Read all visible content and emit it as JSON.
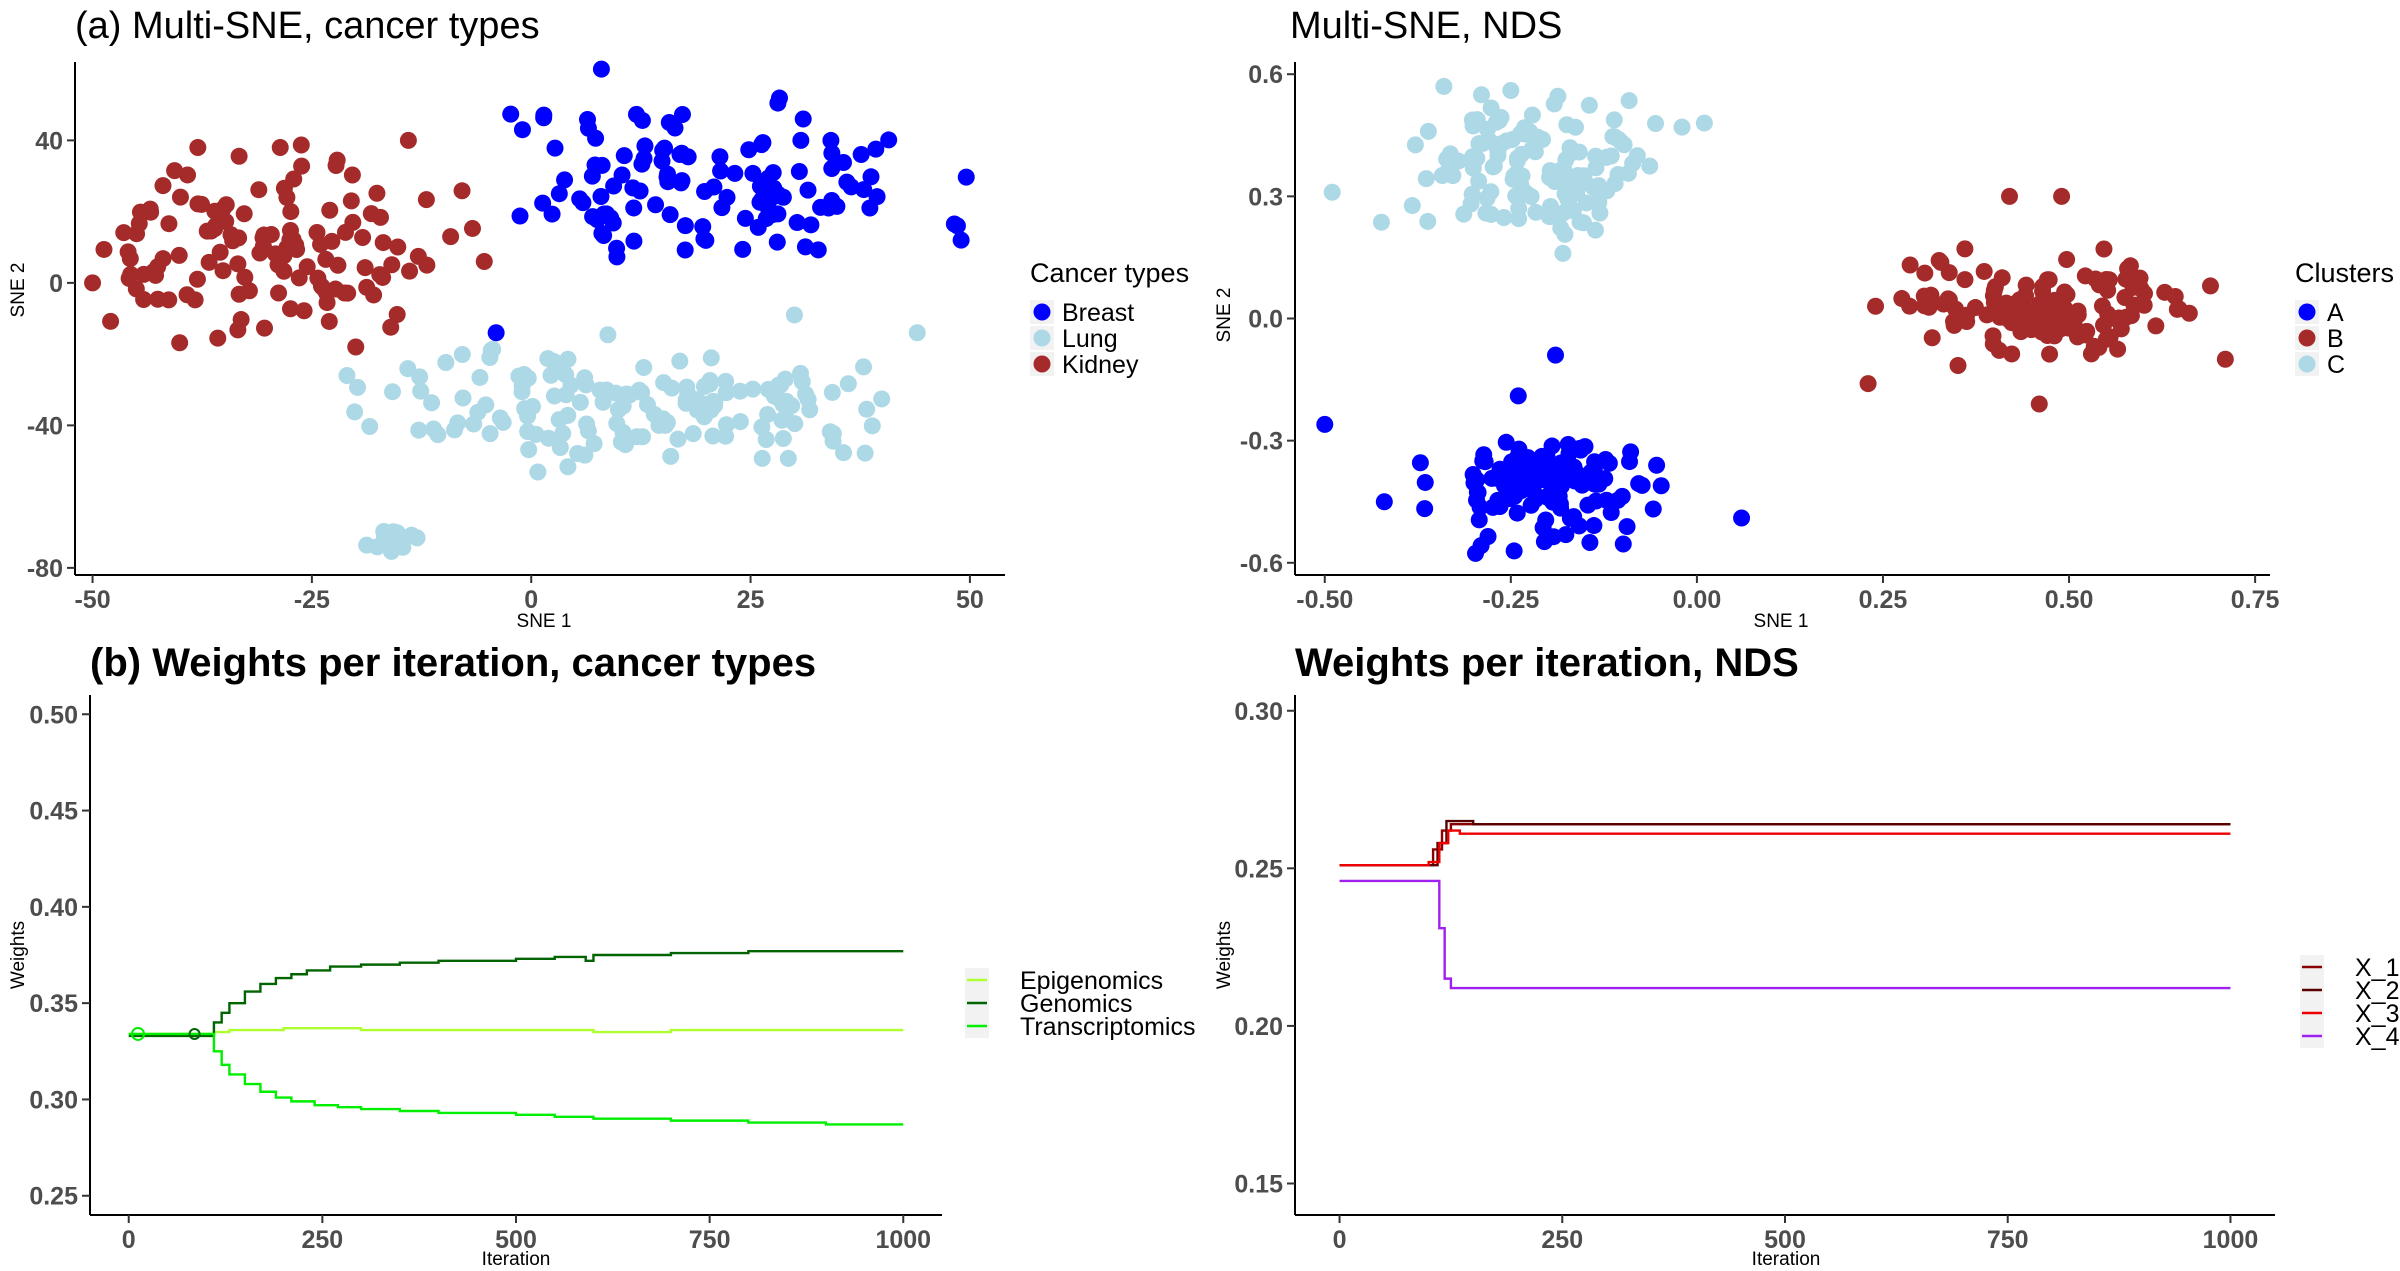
{
  "chart_data": [
    {
      "id": "a",
      "type": "scatter",
      "title": "(a) Multi-SNE, cancer types",
      "xlabel": "SNE 1",
      "ylabel": "SNE 2",
      "xlim": [
        -52,
        54
      ],
      "ylim": [
        -82,
        62
      ],
      "xticks": [
        -50,
        -25,
        0,
        25,
        50
      ],
      "yticks": [
        -80,
        -40,
        0,
        40
      ],
      "xtick_labels": [
        "-50",
        "-25",
        "0",
        "25",
        "50"
      ],
      "ytick_labels": [
        "-80",
        "-40",
        "0",
        "40"
      ],
      "legend": {
        "title": "Cancer types",
        "items": [
          {
            "label": "Breast",
            "color": "#0000ff"
          },
          {
            "label": "Lung",
            "color": "#add8e6"
          },
          {
            "label": "Kidney",
            "color": "#a52a2a"
          }
        ]
      },
      "clusters": [
        {
          "name": "Breast",
          "color": "#0000ff",
          "n": 120,
          "center": [
            20,
            28
          ],
          "spread": [
            13,
            12
          ],
          "xr": [
            -3,
            50
          ],
          "yr": [
            3,
            60
          ],
          "seed": 11,
          "extra": [
            [
              -4,
              -14
            ],
            [
              8,
              60
            ],
            [
              49,
              12
            ],
            [
              31,
              46
            ],
            [
              -1,
              43
            ]
          ]
        },
        {
          "name": "Kidney",
          "color": "#a52a2a",
          "n": 130,
          "center": [
            -32,
            8
          ],
          "spread": [
            11,
            12
          ],
          "xr": [
            -50,
            -5
          ],
          "yr": [
            -18,
            40
          ],
          "seed": 23,
          "extra": [
            [
              -50,
              0
            ],
            [
              -14,
              40
            ],
            [
              -38,
              38
            ],
            [
              -20,
              -18
            ]
          ]
        },
        {
          "name": "Lung",
          "color": "#add8e6",
          "n": 150,
          "center": [
            12,
            -34
          ],
          "spread": [
            15,
            8
          ],
          "xr": [
            -21,
            43
          ],
          "yr": [
            -54,
            -8
          ],
          "seed": 37,
          "extra": [
            [
              -21,
              -26
            ],
            [
              44,
              -14
            ],
            [
              30,
              -9
            ]
          ]
        },
        {
          "name": "Lung",
          "color": "#add8e6",
          "n": 12,
          "center": [
            -16,
            -72
          ],
          "spread": [
            1.8,
            2.2
          ],
          "xr": [
            -19,
            -13
          ],
          "yr": [
            -76,
            -66
          ],
          "seed": 41,
          "extra": []
        }
      ]
    },
    {
      "id": "b",
      "type": "scatter",
      "title": "Multi-SNE, NDS",
      "xlabel": "SNE 1",
      "ylabel": "SNE 2",
      "xlim": [
        -0.54,
        0.77
      ],
      "ylim": [
        -0.63,
        0.63
      ],
      "xticks": [
        -0.5,
        -0.25,
        0,
        0.25,
        0.5,
        0.75
      ],
      "yticks": [
        -0.6,
        -0.3,
        0,
        0.3,
        0.6
      ],
      "xtick_labels": [
        "-0.50",
        "-0.25",
        "0.00",
        "0.25",
        "0.50",
        "0.75"
      ],
      "ytick_labels": [
        "-0.6",
        "-0.3",
        "0.0",
        "0.3",
        "0.6"
      ],
      "legend": {
        "title": "Clusters",
        "items": [
          {
            "label": "A",
            "color": "#0000ff"
          },
          {
            "label": "B",
            "color": "#a52a2a"
          },
          {
            "label": "C",
            "color": "#add8e6"
          }
        ]
      },
      "clusters": [
        {
          "name": "A",
          "color": "#0000ff",
          "n": 130,
          "center": [
            -0.2,
            -0.41
          ],
          "spread": [
            0.075,
            0.07
          ],
          "xr": [
            -0.38,
            0.0
          ],
          "yr": [
            -0.58,
            -0.26
          ],
          "seed": 53,
          "extra": [
            [
              -0.5,
              -0.26
            ],
            [
              -0.42,
              -0.45
            ],
            [
              0.06,
              -0.49
            ],
            [
              -0.19,
              -0.09
            ],
            [
              -0.24,
              -0.19
            ]
          ]
        },
        {
          "name": "B",
          "color": "#a52a2a",
          "n": 130,
          "center": [
            0.46,
            0.04
          ],
          "spread": [
            0.1,
            0.07
          ],
          "xr": [
            0.26,
            0.68
          ],
          "yr": [
            -0.12,
            0.2
          ],
          "seed": 61,
          "extra": [
            [
              0.23,
              -0.16
            ],
            [
              0.71,
              -0.1
            ],
            [
              0.69,
              0.08
            ],
            [
              0.42,
              0.3
            ],
            [
              0.49,
              0.3
            ],
            [
              0.46,
              -0.21
            ],
            [
              0.24,
              0.03
            ]
          ]
        },
        {
          "name": "C",
          "color": "#add8e6",
          "n": 130,
          "center": [
            -0.22,
            0.38
          ],
          "spread": [
            0.08,
            0.08
          ],
          "xr": [
            -0.45,
            -0.05
          ],
          "yr": [
            0.2,
            0.56
          ],
          "seed": 79,
          "extra": [
            [
              -0.49,
              0.31
            ],
            [
              -0.02,
              0.47
            ],
            [
              0.01,
              0.48
            ],
            [
              -0.08,
              0.4
            ],
            [
              -0.34,
              0.57
            ],
            [
              -0.25,
              0.56
            ],
            [
              -0.18,
              0.16
            ]
          ]
        }
      ]
    },
    {
      "id": "c",
      "type": "line",
      "title": "(b) Weights per iteration, cancer types",
      "xlabel": "Iteration",
      "ylabel": "Weights",
      "xlim": [
        -50,
        1050
      ],
      "ylim": [
        0.24,
        0.51
      ],
      "xticks": [
        0,
        250,
        500,
        750,
        1000
      ],
      "yticks": [
        0.25,
        0.3,
        0.35,
        0.4,
        0.45,
        0.5
      ],
      "xtick_labels": [
        "0",
        "250",
        "500",
        "750",
        "1000"
      ],
      "ytick_labels": [
        "0.25",
        "0.30",
        "0.35",
        "0.40",
        "0.45",
        "0.50"
      ],
      "legend": {
        "title": "",
        "items": [
          {
            "label": "Epigenomics",
            "color": "#adff2f"
          },
          {
            "label": "Genomics",
            "color": "#006400"
          },
          {
            "label": "Transcriptomics",
            "color": "#00ee00"
          }
        ]
      },
      "series": [
        {
          "name": "Epigenomics",
          "color": "#adff2f",
          "step": true,
          "x": [
            0,
            100,
            110,
            130,
            160,
            200,
            300,
            500,
            600,
            700,
            800,
            1000
          ],
          "y": [
            0.334,
            0.334,
            0.335,
            0.336,
            0.336,
            0.337,
            0.336,
            0.336,
            0.335,
            0.336,
            0.336,
            0.336
          ]
        },
        {
          "name": "Genomics",
          "color": "#006400",
          "step": true,
          "x": [
            0,
            100,
            110,
            120,
            130,
            150,
            170,
            190,
            210,
            230,
            260,
            300,
            350,
            400,
            450,
            500,
            550,
            590,
            600,
            650,
            700,
            750,
            800,
            850,
            900,
            1000
          ],
          "y": [
            0.333,
            0.333,
            0.34,
            0.345,
            0.35,
            0.356,
            0.36,
            0.363,
            0.365,
            0.367,
            0.369,
            0.37,
            0.371,
            0.372,
            0.372,
            0.373,
            0.374,
            0.372,
            0.375,
            0.375,
            0.376,
            0.376,
            0.377,
            0.377,
            0.377,
            0.377
          ]
        },
        {
          "name": "Transcriptomics",
          "color": "#00ee00",
          "step": true,
          "x": [
            0,
            100,
            110,
            120,
            130,
            150,
            170,
            190,
            210,
            240,
            270,
            300,
            350,
            400,
            450,
            500,
            550,
            600,
            650,
            700,
            750,
            800,
            850,
            900,
            1000
          ],
          "y": [
            0.334,
            0.334,
            0.325,
            0.318,
            0.313,
            0.308,
            0.304,
            0.301,
            0.299,
            0.297,
            0.296,
            0.295,
            0.294,
            0.293,
            0.293,
            0.292,
            0.291,
            0.29,
            0.29,
            0.289,
            0.289,
            0.288,
            0.288,
            0.287,
            0.287
          ]
        }
      ]
    },
    {
      "id": "d",
      "type": "line",
      "title": "Weights per iteration, NDS",
      "xlabel": "Iteration",
      "ylabel": "Weights",
      "xlim": [
        -50,
        1050
      ],
      "ylim": [
        0.14,
        0.305
      ],
      "xticks": [
        0,
        250,
        500,
        750,
        1000
      ],
      "yticks": [
        0.15,
        0.2,
        0.25,
        0.3
      ],
      "xtick_labels": [
        "0",
        "250",
        "500",
        "750",
        "1000"
      ],
      "ytick_labels": [
        "0.15",
        "0.20",
        "0.25",
        "0.30"
      ],
      "legend": {
        "title": "",
        "items": [
          {
            "label": "X_1",
            "color": "#8b0000"
          },
          {
            "label": "X_2",
            "color": "#5a0000"
          },
          {
            "label": "X_3",
            "color": "#ee0000"
          },
          {
            "label": "X_4",
            "color": "#a020f0"
          }
        ]
      },
      "series": [
        {
          "name": "X_1",
          "color": "#8b0000",
          "step": true,
          "x": [
            0,
            90,
            105,
            115,
            125,
            1000
          ],
          "y": [
            0.251,
            0.251,
            0.256,
            0.262,
            0.264,
            0.264
          ]
        },
        {
          "name": "X_2",
          "color": "#5a0000",
          "step": true,
          "x": [
            0,
            95,
            110,
            120,
            130,
            150,
            1000
          ],
          "y": [
            0.251,
            0.251,
            0.258,
            0.265,
            0.265,
            0.264,
            0.264
          ]
        },
        {
          "name": "X_3",
          "color": "#ee0000",
          "step": true,
          "x": [
            0,
            100,
            112,
            122,
            135,
            1000
          ],
          "y": [
            0.251,
            0.252,
            0.258,
            0.262,
            0.261,
            0.261
          ]
        },
        {
          "name": "X_4",
          "color": "#a020f0",
          "step": true,
          "x": [
            0,
            105,
            112,
            118,
            125,
            1000
          ],
          "y": [
            0.246,
            0.246,
            0.231,
            0.215,
            0.212,
            0.212
          ]
        }
      ]
    }
  ]
}
